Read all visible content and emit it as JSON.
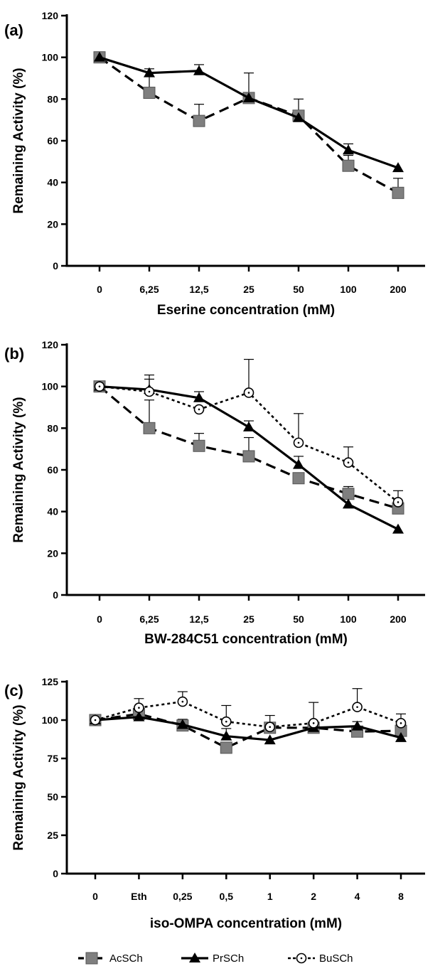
{
  "chart_data": [
    {
      "type": "line",
      "panel_label": "(a)",
      "xlabel": "Eserine concentration (mM)",
      "ylabel": "Remaining Activity (%)",
      "categories": [
        "0",
        "6,25",
        "12,5",
        "25",
        "50",
        "100",
        "200"
      ],
      "ylim": [
        0,
        120
      ],
      "yticks": [
        0,
        20,
        40,
        60,
        80,
        100,
        120
      ],
      "grid": false,
      "series": [
        {
          "name": "AcSCh",
          "values": [
            100,
            83,
            69.5,
            80.5,
            72,
            48,
            35
          ],
          "errors": [
            0,
            11.5,
            8,
            12,
            8,
            5,
            7
          ]
        },
        {
          "name": "PrSCh",
          "values": [
            100,
            92.5,
            93.5,
            80.5,
            71,
            55.5,
            47
          ],
          "errors": [
            0,
            0,
            3,
            0,
            0,
            3,
            0
          ]
        }
      ]
    },
    {
      "type": "line",
      "panel_label": "(b)",
      "xlabel": "BW-284C51 concentration (mM)",
      "ylabel": "Remaining Activity (%)",
      "categories": [
        "0",
        "6,25",
        "12,5",
        "25",
        "50",
        "100",
        "200"
      ],
      "ylim": [
        0,
        120
      ],
      "yticks": [
        0,
        20,
        40,
        60,
        80,
        100,
        120
      ],
      "grid": false,
      "series": [
        {
          "name": "AcSCh",
          "values": [
            100,
            80,
            71.5,
            66.5,
            56,
            48.5,
            41.5
          ],
          "errors": [
            0,
            13.5,
            6,
            9,
            0,
            3.5,
            0
          ]
        },
        {
          "name": "PrSCh",
          "values": [
            100,
            98.5,
            94.5,
            80.5,
            62.5,
            43.5,
            31.5
          ],
          "errors": [
            0,
            7,
            3,
            3,
            4,
            0,
            0
          ]
        },
        {
          "name": "BuSCh",
          "values": [
            100,
            97.5,
            89,
            97,
            73,
            63.5,
            44.5
          ],
          "errors": [
            0,
            6,
            0,
            16,
            14,
            7.5,
            5.5
          ]
        }
      ]
    },
    {
      "type": "line",
      "panel_label": "(c)",
      "xlabel": "iso-OMPA concentration (mM)",
      "ylabel": "Remaining Activity (%)",
      "categories": [
        "0",
        "Eth",
        "0,25",
        "0,5",
        "1",
        "2",
        "4",
        "8"
      ],
      "ylim": [
        0,
        125
      ],
      "yticks": [
        0,
        25,
        50,
        75,
        100,
        125
      ],
      "grid": false,
      "series": [
        {
          "name": "AcSCh",
          "values": [
            100,
            104,
            96.5,
            82,
            95,
            95,
            92.5,
            93
          ],
          "errors": [
            0,
            0,
            4,
            0,
            0,
            0,
            0,
            5
          ]
        },
        {
          "name": "PrSCh",
          "values": [
            100,
            102,
            97,
            89.5,
            87,
            95,
            96,
            88.5
          ],
          "errors": [
            0,
            0,
            0,
            5,
            0,
            0,
            3,
            0
          ]
        },
        {
          "name": "BuSCh",
          "values": [
            100,
            108,
            112,
            99,
            95.5,
            98,
            108.5,
            98
          ],
          "errors": [
            0,
            6,
            6.5,
            10.5,
            7.5,
            13.5,
            12,
            6
          ]
        }
      ]
    }
  ],
  "legend": {
    "placement": "bottom-center",
    "items": [
      "AcSCh",
      "PrSCh",
      "BuSCh"
    ]
  },
  "colors": {
    "AcSCh": "#7f7f7f",
    "PrSCh": "#000000",
    "BuSCh": "#ffffff"
  }
}
